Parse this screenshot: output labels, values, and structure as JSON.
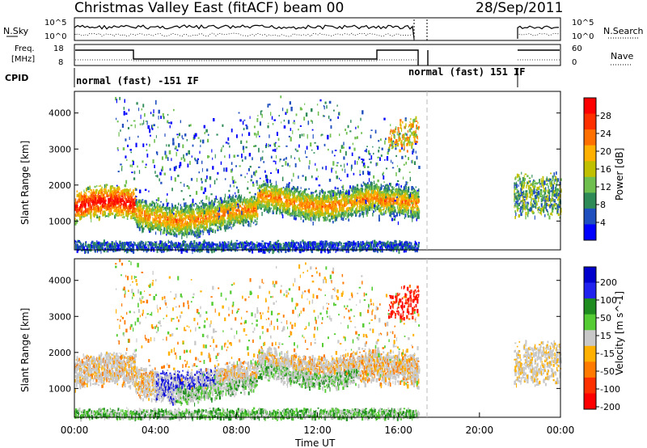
{
  "header": {
    "station": "Christmas Valley East (fitACF)",
    "beam": "beam 00",
    "date": "28/Sep/2011"
  },
  "nsky_panel": {
    "left_label": "N.Sky",
    "right_label": "N.Search",
    "left_ticks": [
      "10^5",
      "10^0"
    ],
    "right_ticks": [
      "10^5",
      "10^0"
    ]
  },
  "freq_panel": {
    "left_label_line1": "Freq.",
    "left_label_line2": "[MHz]",
    "right_label": "Nave",
    "left_ticks": [
      "18",
      "8"
    ],
    "right_ticks": [
      "60",
      "0"
    ]
  },
  "cpid": {
    "label": "CPID",
    "segments": [
      "normal (fast) -151 IF",
      "normal (fast) 151 IF"
    ]
  },
  "colors": {
    "power": [
      "#0000ff",
      "#1f4fbf",
      "#2e8b57",
      "#6fbf4f",
      "#c0c000",
      "#ffb000",
      "#ff7000",
      "#ff3000",
      "#ff0000"
    ],
    "velocity": [
      "#0000cc",
      "#2222ee",
      "#1e8c1e",
      "#55cc33",
      "#c8c8c8",
      "#ffb000",
      "#ff7a00",
      "#ff3000",
      "#ff0000"
    ]
  },
  "chart_data": [
    {
      "type": "heatmap",
      "title": "Power",
      "ylabel": "Slant Range [km]",
      "yticks": [
        1000,
        2000,
        3000,
        4000
      ],
      "ylim": [
        200,
        4600
      ],
      "colorbar": {
        "label": "Power [dB]",
        "ticks": [
          "4",
          "8",
          "12",
          "16",
          "20",
          "24",
          "28"
        ],
        "range": [
          0,
          32
        ]
      },
      "description_layers": [
        {
          "name": "main band",
          "t_start": 0.0,
          "t_end": 17.0,
          "range_center": 1500,
          "level": "high-to-mid"
        },
        {
          "name": "upper scatter",
          "t_start": 2.0,
          "t_end": 17.0,
          "range_center": 3000,
          "level": "low"
        },
        {
          "name": "late band",
          "t_start": 21.7,
          "t_end": 24.0,
          "range_center": 1700,
          "level": "mid"
        }
      ]
    },
    {
      "type": "heatmap",
      "title": "Velocity",
      "ylabel": "Slant Range [km]",
      "xlabel": "Time UT",
      "yticks": [
        1000,
        2000,
        3000,
        4000
      ],
      "ylim": [
        200,
        4600
      ],
      "xticks": [
        "00:00",
        "04:00",
        "08:00",
        "12:00",
        "16:00",
        "20:00",
        "00:00"
      ],
      "xlim": [
        0,
        24
      ],
      "colorbar": {
        "label": "Velocity [m s^-1]",
        "ticks": [
          "200",
          "100",
          "50",
          "15",
          "-15",
          "-50",
          "-100",
          "-200"
        ]
      },
      "description_layers": [
        {
          "name": "ground scatter band",
          "t_start": 0.0,
          "t_end": 17.0,
          "range_center": 1400,
          "level": "near-zero"
        },
        {
          "name": "positive flow",
          "t_start": 6.0,
          "t_end": 14.0,
          "range_center": 1200,
          "level": "positive"
        },
        {
          "name": "negative flow",
          "t_start": 15.5,
          "t_end": 17.0,
          "range_center": 3400,
          "level": "negative"
        }
      ]
    }
  ]
}
